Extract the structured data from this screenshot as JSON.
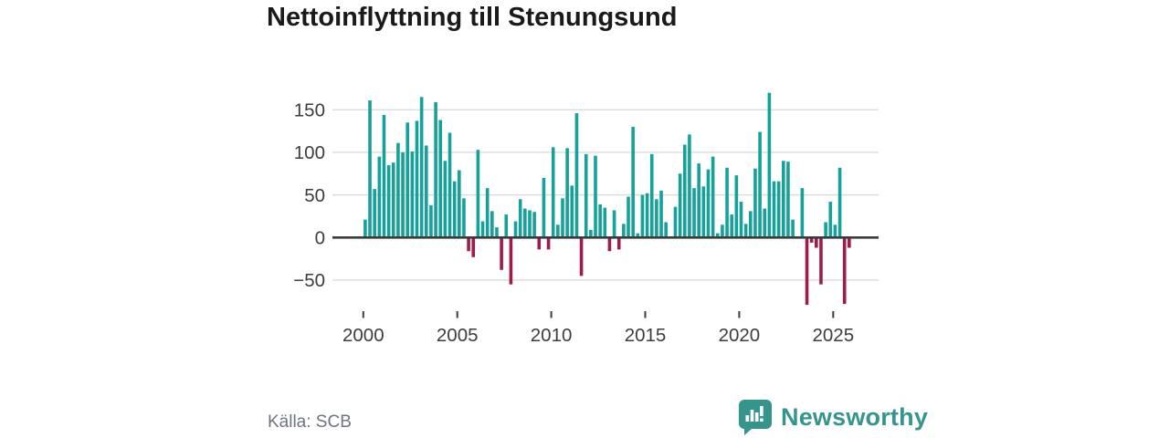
{
  "header": {
    "title": "Nettoinflyttning till Stenungsund"
  },
  "footer": {
    "source": "Källa: SCB",
    "brand": "Newsworthy"
  },
  "icons": {
    "brand_icon": "newsworthy-speech-bubble-bar-chart"
  },
  "colors": {
    "positive_bar": "#16a29a",
    "negative_bar": "#9e1b4c",
    "grid": "#dcdcdc",
    "zero_line": "#3b3b3b",
    "axis_text": "#3d3d3d",
    "title_text": "#1a1a1a",
    "source_text": "#6e7580",
    "brand_teal": "#35958d"
  },
  "chart_data": {
    "type": "bar",
    "title": "Nettoinflyttning till Stenungsund",
    "xlabel": "",
    "ylabel": "",
    "frequency": "quarterly",
    "x_start": {
      "year": 2000,
      "quarter": 1
    },
    "x_end": {
      "year": 2025,
      "quarter": 4
    },
    "values": [
      21,
      161,
      57,
      95,
      144,
      85,
      88,
      111,
      100,
      135,
      101,
      137,
      165,
      108,
      38,
      159,
      138,
      90,
      123,
      66,
      79,
      46,
      -16,
      -23,
      103,
      19,
      58,
      31,
      12,
      -38,
      27,
      -55,
      19,
      45,
      34,
      32,
      30,
      -14,
      70,
      -14,
      106,
      15,
      46,
      105,
      61,
      146,
      -45,
      98,
      9,
      96,
      39,
      35,
      -16,
      32,
      -14,
      16,
      48,
      130,
      5,
      50,
      52,
      98,
      45,
      55,
      18,
      0,
      36,
      75,
      109,
      121,
      58,
      87,
      60,
      80,
      95,
      5,
      15,
      82,
      27,
      73,
      42,
      16,
      31,
      81,
      124,
      34,
      170,
      66,
      66,
      90,
      89,
      21,
      0,
      58,
      -79,
      -6,
      -12,
      -55,
      18,
      42,
      15,
      82,
      -78,
      -12
    ],
    "x_ticks": [
      2000,
      2005,
      2010,
      2015,
      2020,
      2025
    ],
    "x_tick_labels": [
      "2000",
      "2005",
      "2010",
      "2015",
      "2020",
      "2025"
    ],
    "y_ticks": [
      150,
      100,
      50,
      0,
      -50
    ],
    "y_tick_labels": [
      "150",
      "100",
      "50",
      "0",
      "−50"
    ],
    "ylim": [
      -85,
      175
    ],
    "grid": true,
    "legend": false
  }
}
